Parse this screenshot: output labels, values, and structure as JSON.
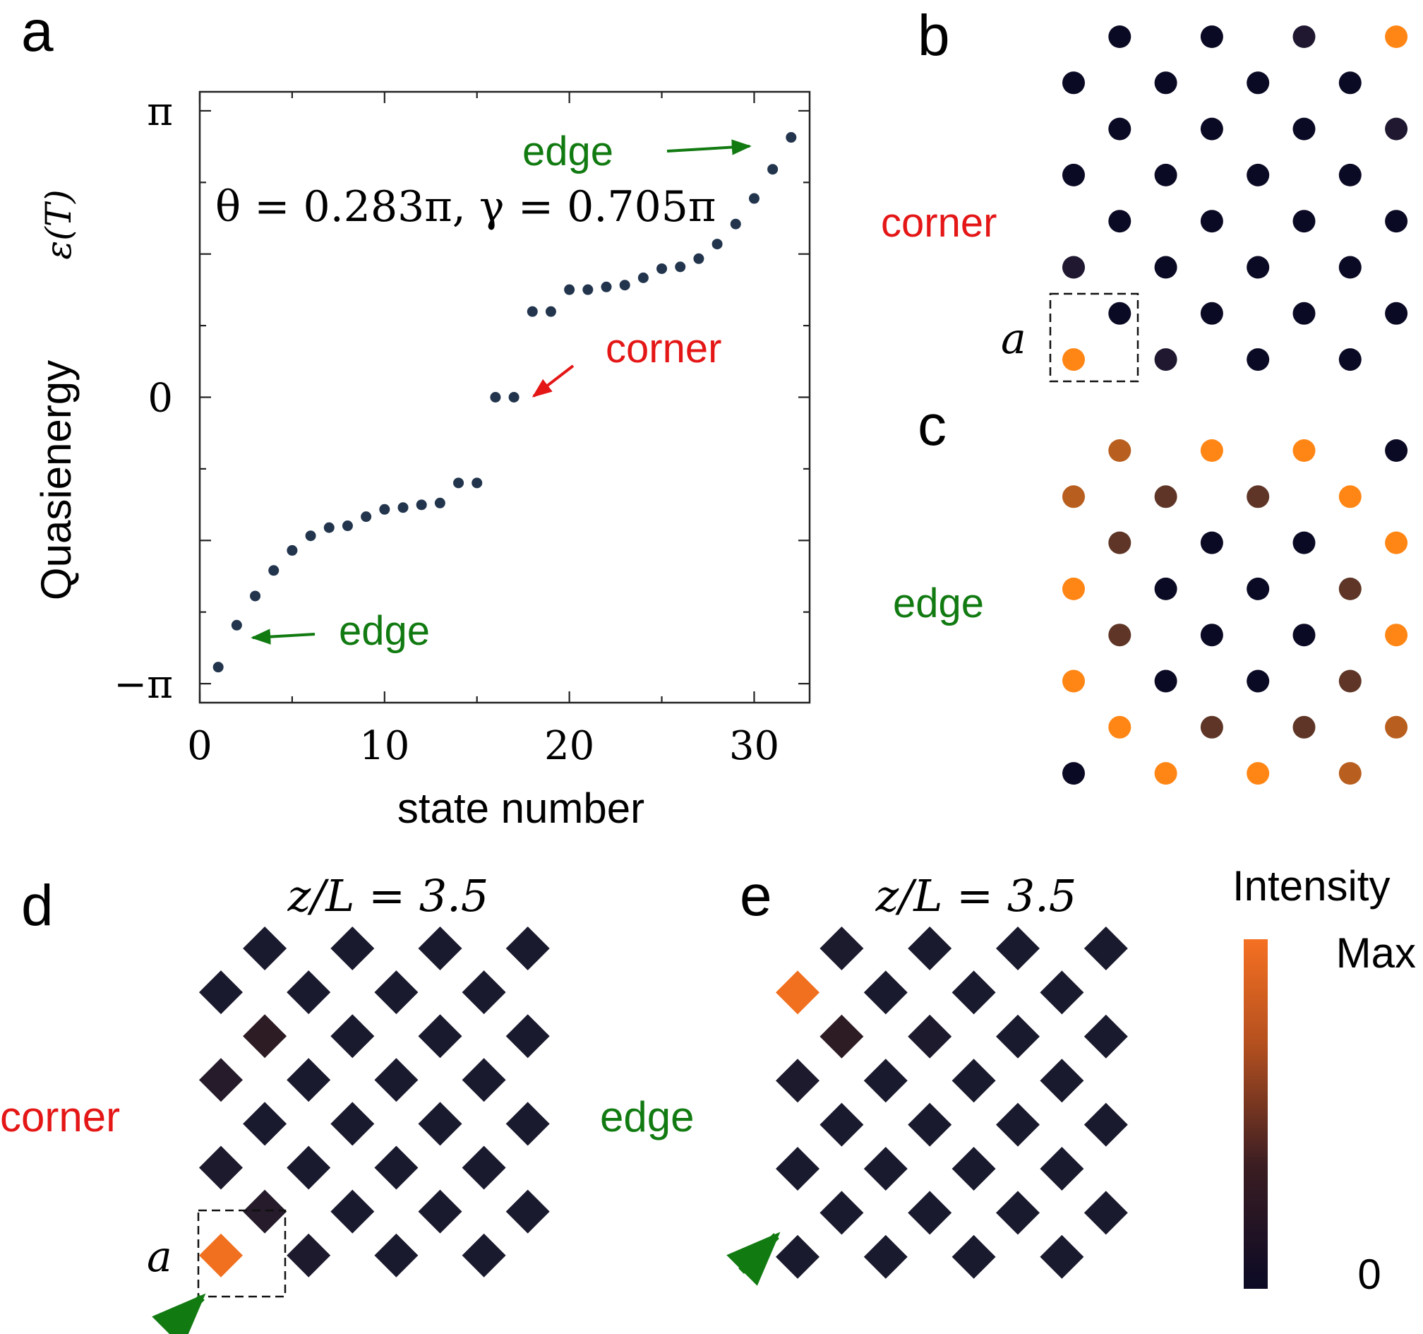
{
  "panels": {
    "a": {
      "letter": "a"
    },
    "b": {
      "letter": "b",
      "side_label": "corner",
      "cell_label": "a"
    },
    "c": {
      "letter": "c",
      "side_label": "edge"
    },
    "d": {
      "letter": "d",
      "title": "z/L = 3.5",
      "side_label": "corner",
      "cell_label": "a"
    },
    "e": {
      "letter": "e",
      "title": "z/L = 3.5",
      "side_label": "edge"
    }
  },
  "colors": {
    "dark": "#0b0a25",
    "orange": "#ff8615",
    "green": "#117a11",
    "red": "#e41616",
    "point": "#22354d"
  },
  "colorbar": {
    "title": "Intensity",
    "max_label": "Max",
    "min_label": "0"
  },
  "chart_data": {
    "type": "scatter",
    "title": "",
    "xlabel": "state number",
    "ylabel": "Quasienergy",
    "ylabel_symbol": "ε(T)",
    "xlim": [
      0,
      33
    ],
    "ylim": [
      -3.35,
      3.35
    ],
    "xticks": [
      0,
      10,
      20,
      30
    ],
    "xtick_labels": [
      "0",
      "10",
      "20",
      "30"
    ],
    "yticks": [
      -3.14159,
      0,
      3.14159
    ],
    "ytick_labels": [
      "−π",
      "0",
      "π"
    ],
    "parameters": "θ = 0.283π, γ = 0.705π",
    "annotations": {
      "edge_top": "edge",
      "edge_bottom": "edge",
      "corner": "corner"
    },
    "x": [
      1,
      2,
      3,
      4,
      5,
      6,
      7,
      8,
      9,
      10,
      11,
      12,
      13,
      14,
      15,
      16,
      17,
      18,
      19,
      20,
      21,
      22,
      23,
      24,
      25,
      26,
      27,
      28,
      29,
      30,
      31,
      32
    ],
    "y": [
      -2.96,
      -2.5,
      -2.18,
      -1.9,
      -1.68,
      -1.52,
      -1.43,
      -1.41,
      -1.31,
      -1.23,
      -1.21,
      -1.18,
      -1.16,
      -0.94,
      -0.94,
      0.0,
      0.0,
      0.94,
      0.94,
      1.18,
      1.18,
      1.21,
      1.23,
      1.31,
      1.41,
      1.43,
      1.52,
      1.68,
      1.9,
      2.18,
      2.5,
      2.85
    ]
  },
  "lattice_b": [
    [
      null,
      "#0b0a25",
      null,
      "#0b0a25",
      null,
      "#1f1830",
      null,
      "#ff8615"
    ],
    [
      "#0b0a25",
      null,
      "#0b0a25",
      null,
      "#0b0a25",
      null,
      "#0b0a25",
      null
    ],
    [
      null,
      "#0b0a25",
      null,
      "#0b0a25",
      null,
      "#0b0a25",
      null,
      "#1f1830"
    ],
    [
      "#0b0a25",
      null,
      "#0b0a25",
      null,
      "#0b0a25",
      null,
      "#0b0a25",
      null
    ],
    [
      null,
      "#0b0a25",
      null,
      "#0b0a25",
      null,
      "#0b0a25",
      null,
      "#0b0a25"
    ],
    [
      "#1f1830",
      null,
      "#0b0a25",
      null,
      "#0b0a25",
      null,
      "#0b0a25",
      null
    ],
    [
      null,
      "#0b0a25",
      null,
      "#0b0a25",
      null,
      "#0b0a25",
      null,
      "#0b0a25"
    ],
    [
      "#ff8615",
      null,
      "#1f1830",
      null,
      "#0b0a25",
      null,
      "#0b0a25",
      null
    ]
  ],
  "lattice_c": [
    [
      null,
      "#b85e1e",
      null,
      "#ff8615",
      null,
      "#ff8615",
      null,
      "#0b0a25"
    ],
    [
      "#b85e1e",
      null,
      "#5e3526",
      null,
      "#5e3526",
      null,
      "#ff8615",
      null
    ],
    [
      null,
      "#5e3526",
      null,
      "#0b0a25",
      null,
      "#0b0a25",
      null,
      "#ff8615"
    ],
    [
      "#ff8615",
      null,
      "#0b0a25",
      null,
      "#0b0a25",
      null,
      "#5e3526",
      null
    ],
    [
      null,
      "#5e3526",
      null,
      "#0b0a25",
      null,
      "#0b0a25",
      null,
      "#ff8615"
    ],
    [
      "#ff8615",
      null,
      "#0b0a25",
      null,
      "#0b0a25",
      null,
      "#5e3526",
      null
    ],
    [
      null,
      "#ff8615",
      null,
      "#5e3526",
      null,
      "#5e3526",
      null,
      "#b85e1e"
    ],
    [
      "#0b0a25",
      null,
      "#ff8615",
      null,
      "#ff8615",
      null,
      "#b85e1e",
      null
    ]
  ],
  "lattice_d": [
    [
      null,
      "#1a1a2e",
      null,
      "#1a1a2e",
      null,
      "#1a1a2e",
      null,
      "#1a1a2e"
    ],
    [
      "#1a1a2e",
      null,
      "#1a1a2e",
      null,
      "#1a1a2e",
      null,
      "#1a1a2e",
      null
    ],
    [
      null,
      "#2e1c25",
      null,
      "#1a1a2e",
      null,
      "#1a1a2e",
      null,
      "#1a1a2e"
    ],
    [
      "#251b2b",
      null,
      "#1a1a2e",
      null,
      "#1a1a2e",
      null,
      "#1a1a2e",
      null
    ],
    [
      null,
      "#1a1a2e",
      null,
      "#1a1a2e",
      null,
      "#1a1a2e",
      null,
      "#1a1a2e"
    ],
    [
      "#1e1a2d",
      null,
      "#1a1a2e",
      null,
      "#1a1a2e",
      null,
      "#1a1a2e",
      null
    ],
    [
      null,
      "#251b2b",
      null,
      "#1a1a2e",
      null,
      "#1a1a2e",
      null,
      "#1a1a2e"
    ],
    [
      "#f07020",
      null,
      "#1e1a2d",
      null,
      "#1a1a2e",
      null,
      "#1a1a2e",
      null
    ]
  ],
  "lattice_e": [
    [
      null,
      "#1c1a2d",
      null,
      "#1a1a2e",
      null,
      "#1a1a2e",
      null,
      "#1a1a2e"
    ],
    [
      "#f07020",
      null,
      "#1a1a2e",
      null,
      "#1a1a2e",
      null,
      "#1a1a2e",
      null
    ],
    [
      null,
      "#2e1c25",
      null,
      "#1e1a2d",
      null,
      "#1a1a2e",
      null,
      "#1a1a2e"
    ],
    [
      "#1e1a2d",
      null,
      "#1a1a2e",
      null,
      "#1a1a2e",
      null,
      "#1a1a2e",
      null
    ],
    [
      null,
      "#1a1a2e",
      null,
      "#1a1a2e",
      null,
      "#1a1a2e",
      null,
      "#1a1a2e"
    ],
    [
      "#1a1a2e",
      null,
      "#1a1a2e",
      null,
      "#1a1a2e",
      null,
      "#1a1a2e",
      null
    ],
    [
      null,
      "#1a1a2e",
      null,
      "#1a1a2e",
      null,
      "#1a1a2e",
      null,
      "#1a1a2e"
    ],
    [
      "#1a1a2e",
      null,
      "#1a1a2e",
      null,
      "#1a1a2e",
      null,
      "#1a1a2e",
      null
    ]
  ]
}
